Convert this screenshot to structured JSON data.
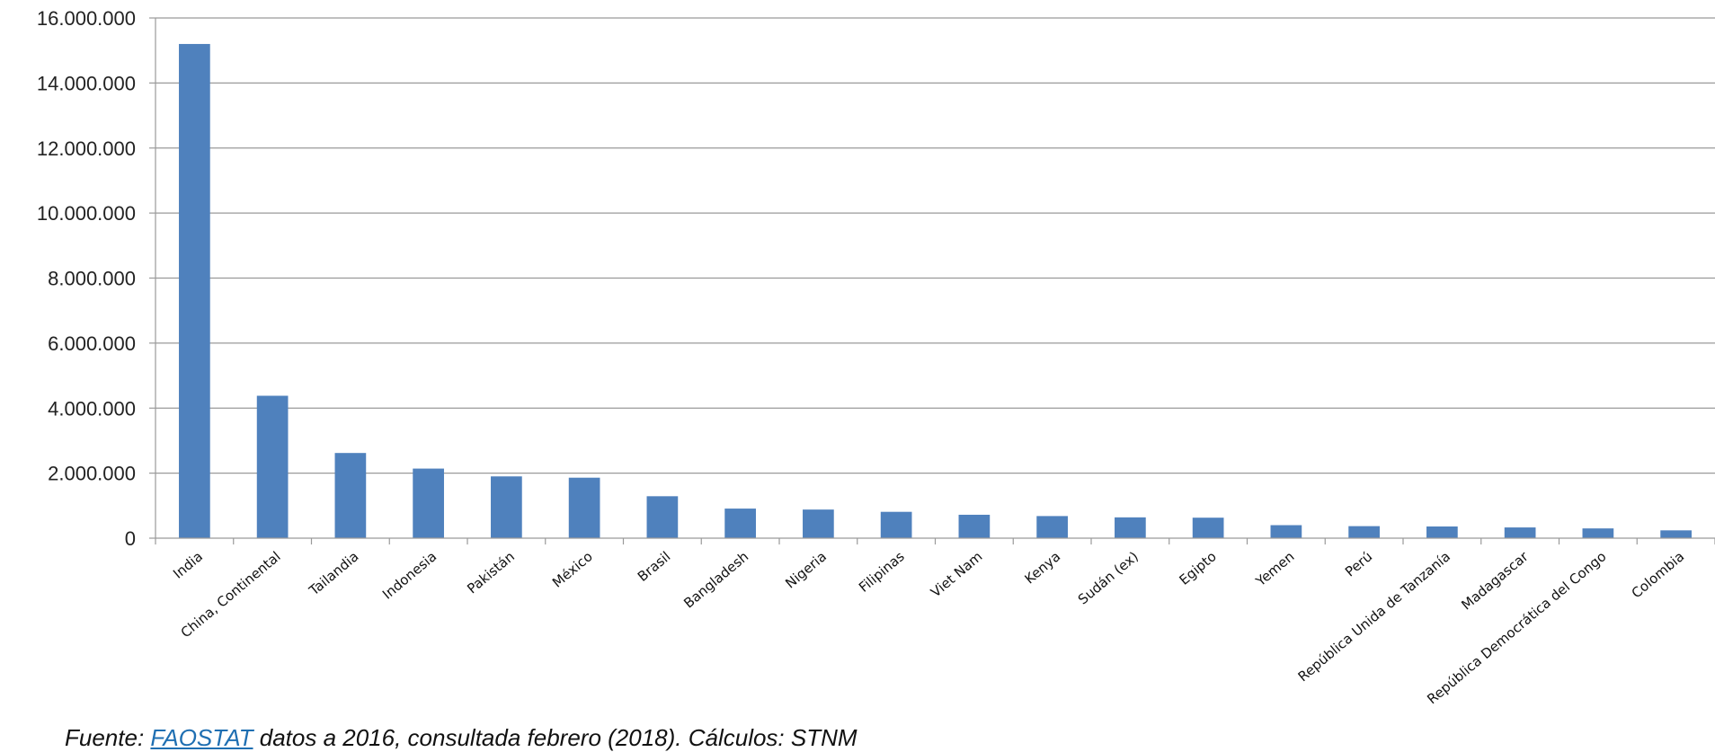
{
  "chart_data": {
    "type": "bar",
    "title": "",
    "xlabel": "",
    "ylabel": "",
    "ylim": [
      0,
      16000000
    ],
    "yticks": [
      0,
      2000000,
      4000000,
      6000000,
      8000000,
      10000000,
      12000000,
      14000000,
      16000000
    ],
    "ytick_labels": [
      "0",
      "2.000.000",
      "4.000.000",
      "6.000.000",
      "8.000.000",
      "10.000.000",
      "12.000.000",
      "14.000.000",
      "16.000.000"
    ],
    "grid": true,
    "legend": "none",
    "bar_color": "#4f81bd",
    "categories": [
      "India",
      "China, Continental",
      "Tailandia",
      "Indonesia",
      "Pakistán",
      "México",
      "Brasil",
      "Bangladesh",
      "Nigeria",
      "Filipinas",
      "Viet Nam",
      "Kenya",
      "Sudán (ex)",
      "Egipto",
      "Yemen",
      "Perú",
      "República Unida de Tanzanía",
      "Madagascar",
      "República Democrática del Congo",
      "Colombia"
    ],
    "values": [
      15200000,
      4380000,
      2620000,
      2140000,
      1900000,
      1860000,
      1290000,
      910000,
      880000,
      810000,
      720000,
      680000,
      640000,
      630000,
      400000,
      370000,
      360000,
      330000,
      300000,
      240000
    ]
  },
  "footer": {
    "source_prefix": "Fuente: ",
    "source_link": "FAOSTAT",
    "source_suffix": " datos a 2016, consultada  febrero (2018). Cálculos: STNM"
  }
}
